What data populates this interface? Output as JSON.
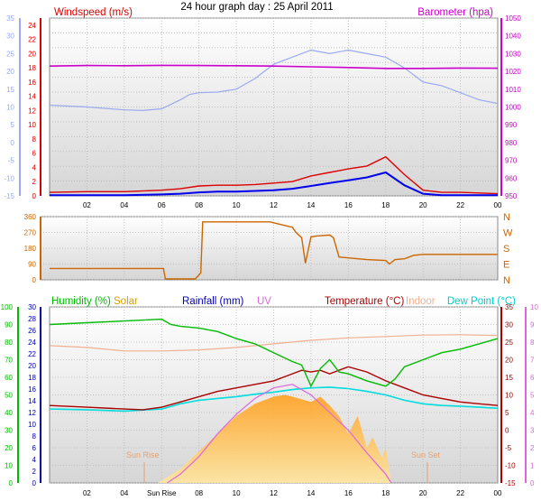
{
  "title": "24 hour graph day : 25 April 2011",
  "colors": {
    "wind_speed": "#dd0000",
    "wind_avg": "#0000ee",
    "wind_gust_scale": "#9aaaf0",
    "barometer": "#cc00cc",
    "wind_dir": "#cc6600",
    "humidity": "#00bb00",
    "solar": "#ffaa33",
    "rain": "#0000aa",
    "uv": "#dd66dd",
    "temperature": "#aa0000",
    "indoor": "#f0b090",
    "dew_point": "#00dddd",
    "grid": "#b8b8b8",
    "panel_bg_top": "#ffffff",
    "panel_bg_bottom": "#d6d6d6"
  },
  "panel1": {
    "left_label": "Windspeed (m/s)",
    "right_label": "Barometer (hpa)",
    "outer_left_ticks": [
      "35",
      "30",
      "25",
      "20",
      "15",
      "10",
      "5",
      "0",
      "-5",
      "-10",
      "-15"
    ],
    "inner_left_ticks": [
      "24",
      "22",
      "20",
      "18",
      "16",
      "14",
      "12",
      "10",
      "8",
      "6",
      "4",
      "2",
      "0"
    ],
    "right_ticks": [
      "1050",
      "1040",
      "1030",
      "1020",
      "1010",
      "1000",
      "990",
      "980",
      "970",
      "960",
      "950"
    ],
    "x_ticks": [
      "02",
      "04",
      "06",
      "08",
      "10",
      "12",
      "14",
      "16",
      "18",
      "20",
      "22",
      "00"
    ]
  },
  "panel2": {
    "left_ticks": [
      "360",
      "270",
      "180",
      "90",
      "0"
    ],
    "right_ticks": [
      "N",
      "W",
      "S",
      "E",
      "N"
    ]
  },
  "panel3": {
    "labels": {
      "humidity": "Humidity (%)",
      "solar": "Solar",
      "rainfall": "Rainfall (mm)",
      "uv": "UV",
      "temperature": "Temperature (°C)",
      "indoor": "Indoor",
      "dew_point": "Dew Point (°C)"
    },
    "humidity_ticks": [
      "100",
      "90",
      "80",
      "70",
      "60",
      "50",
      "40",
      "30",
      "20",
      "10",
      "0"
    ],
    "rain_ticks": [
      "30",
      "28",
      "26",
      "24",
      "22",
      "20",
      "18",
      "16",
      "14",
      "12",
      "10",
      "8",
      "6",
      "4",
      "2",
      "0"
    ],
    "temp_ticks": [
      "35",
      "30",
      "25",
      "20",
      "15",
      "10",
      "5",
      "0",
      "-5",
      "-10",
      "-15"
    ],
    "uv_ticks": [
      "10",
      "9",
      "8",
      "7",
      "6",
      "5",
      "4",
      "3",
      "2",
      "1",
      "0"
    ],
    "x_ticks": [
      "02",
      "04",
      "Sun Rise",
      "08",
      "10",
      "12",
      "14",
      "16",
      "18",
      "20",
      "22",
      "00"
    ],
    "sunrise_label": "Sun Rise",
    "sunset_label": "Sun Set"
  },
  "chart_data": [
    {
      "type": "line",
      "x_unit": "hour",
      "xlim": [
        0,
        24
      ],
      "ylim_windspeed": [
        0,
        25
      ],
      "ylim_barometer": [
        950,
        1050
      ],
      "ylim_outer": [
        -15,
        35
      ],
      "series": [
        {
          "name": "Windspeed (m/s)",
          "axis": "windspeed",
          "x": [
            0,
            2,
            4,
            6,
            7,
            8,
            9,
            10,
            11,
            12,
            13,
            14,
            15,
            16,
            17,
            18,
            19,
            20,
            21,
            22,
            23,
            24
          ],
          "y": [
            0.5,
            0.6,
            0.6,
            0.8,
            1.0,
            1.4,
            1.5,
            1.5,
            1.6,
            1.8,
            2.0,
            2.8,
            3.3,
            3.8,
            4.2,
            5.5,
            3.0,
            0.8,
            0.5,
            0.5,
            0.4,
            0.3
          ]
        },
        {
          "axis": "windspeed",
          "x": [
            0,
            2,
            4,
            6,
            7,
            8,
            9,
            10,
            11,
            12,
            13,
            14,
            15,
            16,
            17,
            18,
            19,
            20,
            21,
            22,
            23,
            24
          ],
          "y": [
            0.1,
            0.1,
            0.1,
            0.2,
            0.3,
            0.5,
            0.6,
            0.6,
            0.7,
            0.8,
            1.0,
            1.4,
            1.8,
            2.2,
            2.6,
            3.3,
            1.5,
            0.3,
            0.1,
            0.1,
            0.1,
            0.1
          ]
        },
        {
          "axis": "outer",
          "x": [
            0,
            2,
            4,
            5,
            6,
            7,
            7.5,
            8,
            9,
            10,
            11,
            12,
            13,
            14,
            15,
            16,
            17,
            18,
            19,
            20,
            21,
            22,
            23,
            24
          ],
          "y": [
            10.5,
            10.0,
            9.2,
            9.0,
            9.5,
            12,
            13.5,
            14,
            14.2,
            15,
            18,
            22,
            24,
            26,
            25,
            26,
            25,
            24,
            21,
            17,
            16,
            14,
            12,
            11
          ]
        },
        {
          "name": "Barometer (hpa)",
          "axis": "barometer",
          "x": [
            0,
            2,
            4,
            6,
            8,
            10,
            12,
            14,
            16,
            18,
            20,
            22,
            24
          ],
          "y": [
            1023,
            1023.3,
            1023.2,
            1023.4,
            1023.3,
            1023.2,
            1023.0,
            1022.6,
            1022.2,
            1021.7,
            1021.7,
            1021.9,
            1021.8
          ]
        }
      ]
    },
    {
      "type": "line",
      "name": "wind direction",
      "x_unit": "hour",
      "xlim": [
        0,
        24
      ],
      "ylim": [
        0,
        360
      ],
      "series": [
        {
          "x": [
            0,
            6.1,
            6.2,
            7.6,
            7.8,
            8.1,
            8.2,
            11.8,
            12.2,
            13.0,
            13.2,
            13.5,
            13.7,
            14.0,
            14.3,
            15.0,
            15.2,
            15.5,
            16.0,
            17.0,
            18.0,
            18.2,
            18.5,
            19.0,
            19.5,
            20.0,
            22.0,
            24.0
          ],
          "y": [
            65,
            65,
            5,
            5,
            5,
            40,
            330,
            330,
            320,
            300,
            270,
            240,
            95,
            245,
            250,
            255,
            240,
            130,
            125,
            115,
            110,
            90,
            115,
            120,
            140,
            145,
            145,
            145
          ]
        }
      ]
    },
    {
      "type": "area",
      "x_unit": "hour",
      "xlim": [
        0,
        24
      ],
      "ylim_humidity": [
        0,
        100
      ],
      "ylim_temperature": [
        -15,
        35
      ],
      "ylim_uv": [
        0,
        10
      ],
      "series": [
        {
          "name": "Humidity (%)",
          "axis": "humidity",
          "x": [
            0,
            2,
            4,
            6,
            6.5,
            7,
            8,
            9,
            10,
            11,
            12,
            13,
            13.5,
            14,
            14.5,
            15,
            15.5,
            16,
            17,
            18,
            18.5,
            19,
            20,
            21,
            22,
            23,
            24
          ],
          "y": [
            90,
            91,
            92,
            93,
            90,
            89,
            88,
            86,
            82,
            79,
            74,
            69,
            67,
            55,
            65,
            70,
            63,
            62,
            58,
            55,
            59,
            66,
            70,
            74,
            76,
            79,
            82
          ]
        },
        {
          "name": "Temperature (°C)",
          "axis": "temperature",
          "x": [
            0,
            2,
            4,
            5,
            6,
            7,
            8,
            9,
            10,
            11,
            12,
            13,
            13.5,
            14,
            14.5,
            15,
            16,
            17,
            18,
            19,
            20,
            21,
            22,
            23,
            24
          ],
          "y": [
            7,
            6.5,
            6,
            5.8,
            6.5,
            8,
            9.5,
            11,
            12,
            13,
            14,
            16,
            17,
            16.5,
            17,
            16,
            18,
            16.5,
            14,
            12,
            10,
            9,
            8,
            7.5,
            7
          ]
        },
        {
          "name": "Indoor",
          "axis": "temperature",
          "x": [
            0,
            2,
            4,
            6,
            8,
            10,
            12,
            14,
            16,
            18,
            20,
            22,
            24
          ],
          "y": [
            24,
            23.5,
            22.5,
            22.5,
            22.8,
            23.5,
            24.5,
            25.5,
            26.2,
            26.6,
            27,
            27.1,
            26.9
          ]
        },
        {
          "name": "Dew Point (°C)",
          "axis": "temperature",
          "x": [
            0,
            2,
            4,
            6,
            7,
            8,
            9,
            10,
            11,
            12,
            13,
            14,
            15,
            16,
            17,
            18,
            19,
            20,
            21,
            22,
            23,
            24
          ],
          "y": [
            6,
            5.8,
            5.4,
            6,
            7.5,
            8.5,
            9,
            9.5,
            10.2,
            10.8,
            11.5,
            12,
            12.2,
            11.8,
            11,
            10,
            8.5,
            7.5,
            7,
            6.8,
            6.5,
            6.2
          ]
        },
        {
          "name": "Solar",
          "axis": "temperature",
          "x": [
            5.8,
            7,
            8,
            9,
            10,
            11,
            12,
            12.6,
            13,
            14,
            14.5,
            15,
            15.5,
            16,
            16.5,
            17,
            17.3,
            17.8,
            18,
            18.2,
            18.3
          ],
          "y": [
            -15,
            -11,
            -6,
            -1,
            4,
            7.5,
            9.5,
            10,
            9.5,
            8,
            9.5,
            7,
            4,
            -1,
            4,
            -5,
            -2,
            -8,
            -5,
            -12,
            -15
          ]
        },
        {
          "name": "UV",
          "axis": "uv",
          "x": [
            6.3,
            7,
            8,
            9,
            10,
            11,
            12,
            13,
            14,
            15,
            16,
            17,
            18,
            18.3
          ],
          "y": [
            0,
            0.5,
            1.5,
            2.8,
            3.9,
            4.8,
            5.4,
            5.6,
            5.0,
            4.0,
            3.0,
            1.7,
            0.5,
            0
          ]
        }
      ],
      "annotations": [
        {
          "text": "Sun Rise",
          "x": 6.1
        },
        {
          "text": "Sun Set",
          "x": 20.6
        }
      ]
    }
  ]
}
